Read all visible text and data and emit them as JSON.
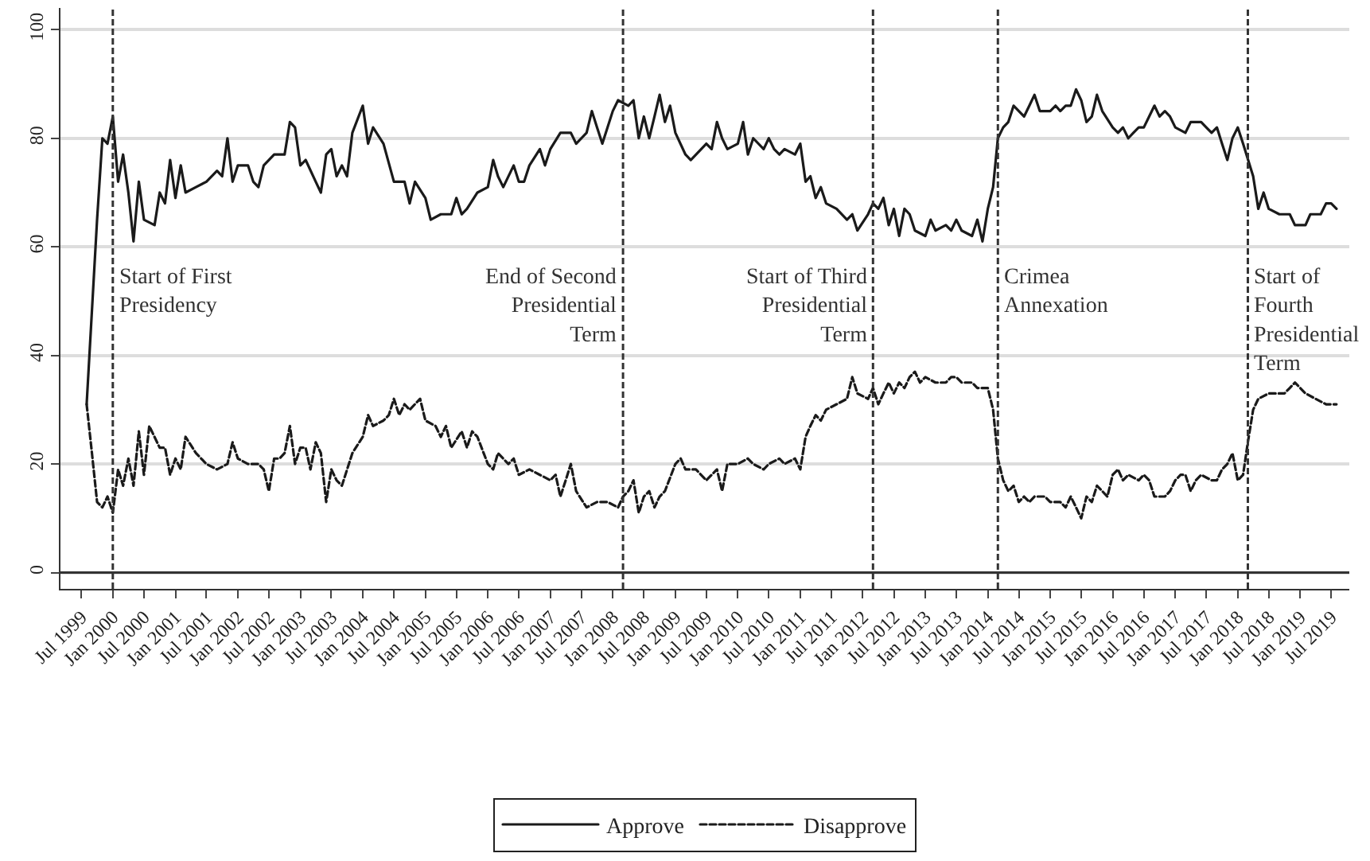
{
  "chart_data": {
    "type": "line",
    "xlim": [
      "1999-03-01",
      "2019-10-15"
    ],
    "ylim": [
      -3,
      104
    ],
    "yticks": [
      0,
      20,
      40,
      60,
      80,
      100
    ],
    "xticks": [
      {
        "value": "1999-07",
        "label": "Jul 1999"
      },
      {
        "value": "2000-01",
        "label": "Jan 2000"
      },
      {
        "value": "2000-07",
        "label": "Jul 2000"
      },
      {
        "value": "2001-01",
        "label": "Jan 2001"
      },
      {
        "value": "2001-07",
        "label": "Jul 2001"
      },
      {
        "value": "2002-01",
        "label": "Jan 2002"
      },
      {
        "value": "2002-07",
        "label": "Jul 2002"
      },
      {
        "value": "2003-01",
        "label": "Jan 2003"
      },
      {
        "value": "2003-07",
        "label": "Jul 2003"
      },
      {
        "value": "2004-01",
        "label": "Jan 2004"
      },
      {
        "value": "2004-07",
        "label": "Jul 2004"
      },
      {
        "value": "2005-01",
        "label": "Jan 2005"
      },
      {
        "value": "2005-07",
        "label": "Jul 2005"
      },
      {
        "value": "2006-01",
        "label": "Jan 2006"
      },
      {
        "value": "2006-07",
        "label": "Jul 2006"
      },
      {
        "value": "2007-01",
        "label": "Jan 2007"
      },
      {
        "value": "2007-07",
        "label": "Jul 2007"
      },
      {
        "value": "2008-01",
        "label": "Jan 2008"
      },
      {
        "value": "2008-07",
        "label": "Jul 2008"
      },
      {
        "value": "2009-01",
        "label": "Jan 2009"
      },
      {
        "value": "2009-07",
        "label": "Jul 2009"
      },
      {
        "value": "2010-01",
        "label": "Jan 2010"
      },
      {
        "value": "2010-07",
        "label": "Jul 2010"
      },
      {
        "value": "2011-01",
        "label": "Jan 2011"
      },
      {
        "value": "2011-07",
        "label": "Jul 2011"
      },
      {
        "value": "2012-01",
        "label": "Jan 2012"
      },
      {
        "value": "2012-07",
        "label": "Jul 2012"
      },
      {
        "value": "2013-01",
        "label": "Jan 2013"
      },
      {
        "value": "2013-07",
        "label": "Jul 2013"
      },
      {
        "value": "2014-01",
        "label": "Jan 2014"
      },
      {
        "value": "2014-07",
        "label": "Jul 2014"
      },
      {
        "value": "2015-01",
        "label": "Jan 2015"
      },
      {
        "value": "2015-07",
        "label": "Jul 2015"
      },
      {
        "value": "2016-01",
        "label": "Jan 2016"
      },
      {
        "value": "2016-07",
        "label": "Jul 2016"
      },
      {
        "value": "2017-01",
        "label": "Jan 2017"
      },
      {
        "value": "2017-07",
        "label": "Jul 2017"
      },
      {
        "value": "2018-01",
        "label": "Jan 2018"
      },
      {
        "value": "2018-07",
        "label": "Jul 2018"
      },
      {
        "value": "2019-01",
        "label": "Jan 2019"
      },
      {
        "value": "2019-07",
        "label": "Jul 2019"
      }
    ],
    "grid": "y",
    "legend": "bottom",
    "marker": "none",
    "ref_lines": [
      {
        "axis": "y",
        "value": 0,
        "label": null,
        "color": "#333333",
        "line_style": "solid"
      },
      {
        "axis": "x",
        "value": "2000-01",
        "label": "Start of First\nPresidency",
        "color": "#333333",
        "line_style": "dashed"
      },
      {
        "axis": "x",
        "value": "2008-03",
        "label": "End of Second\nPresidential\nTerm",
        "color": "#333333",
        "line_style": "dashed"
      },
      {
        "axis": "x",
        "value": "2012-03",
        "label": "Start of Third\nPresidential\nTerm",
        "color": "#333333",
        "line_style": "dashed"
      },
      {
        "axis": "x",
        "value": "2014-03",
        "label": "Crimea\nAnnexation",
        "color": "#333333",
        "line_style": "dashed"
      },
      {
        "axis": "x",
        "value": "2018-03",
        "label": "Start of\nFourth\nPresidential\nTerm",
        "color": "#333333",
        "line_style": "dashed"
      }
    ],
    "series": [
      {
        "name": "Approve",
        "color": "#1a1a1a",
        "line_style": "solid",
        "x": [
          "1999-08",
          "1999-10",
          "1999-11",
          "1999-12",
          "2000-01",
          "2000-02",
          "2000-03",
          "2000-04",
          "2000-05",
          "2000-06",
          "2000-07",
          "2000-09",
          "2000-10",
          "2000-11",
          "2000-12",
          "2001-01",
          "2001-02",
          "2001-03",
          "2001-05",
          "2001-07",
          "2001-09",
          "2001-10",
          "2001-11",
          "2001-12",
          "2002-01",
          "2002-03",
          "2002-04",
          "2002-05",
          "2002-06",
          "2002-08",
          "2002-10",
          "2002-11",
          "2002-12",
          "2003-01",
          "2003-02",
          "2003-04",
          "2003-05",
          "2003-06",
          "2003-07",
          "2003-08",
          "2003-09",
          "2003-10",
          "2003-11",
          "2004-01",
          "2004-02",
          "2004-03",
          "2004-05",
          "2004-07",
          "2004-09",
          "2004-10",
          "2004-11",
          "2005-01",
          "2005-02",
          "2005-04",
          "2005-06",
          "2005-07",
          "2005-08",
          "2005-09",
          "2005-11",
          "2006-01",
          "2006-02",
          "2006-03",
          "2006-04",
          "2006-06",
          "2006-07",
          "2006-08",
          "2006-09",
          "2006-11",
          "2006-12",
          "2007-01",
          "2007-03",
          "2007-05",
          "2007-06",
          "2007-08",
          "2007-09",
          "2007-10",
          "2007-11",
          "2008-01",
          "2008-02",
          "2008-04",
          "2008-05",
          "2008-06",
          "2008-07",
          "2008-08",
          "2008-09",
          "2008-10",
          "2008-11",
          "2008-12",
          "2009-01",
          "2009-03",
          "2009-04",
          "2009-06",
          "2009-07",
          "2009-08",
          "2009-09",
          "2009-10",
          "2009-11",
          "2010-01",
          "2010-02",
          "2010-03",
          "2010-04",
          "2010-06",
          "2010-07",
          "2010-08",
          "2010-09",
          "2010-10",
          "2010-12",
          "2011-01",
          "2011-02",
          "2011-03",
          "2011-04",
          "2011-05",
          "2011-06",
          "2011-08",
          "2011-10",
          "2011-11",
          "2011-12",
          "2012-02",
          "2012-03",
          "2012-04",
          "2012-05",
          "2012-06",
          "2012-07",
          "2012-08",
          "2012-09",
          "2012-10",
          "2012-11",
          "2013-01",
          "2013-02",
          "2013-03",
          "2013-05",
          "2013-06",
          "2013-07",
          "2013-08",
          "2013-10",
          "2013-11",
          "2013-12",
          "2014-01",
          "2014-02",
          "2014-03",
          "2014-04",
          "2014-05",
          "2014-06",
          "2014-08",
          "2014-09",
          "2014-10",
          "2014-11",
          "2015-01",
          "2015-02",
          "2015-03",
          "2015-04",
          "2015-05",
          "2015-06",
          "2015-07",
          "2015-08",
          "2015-09",
          "2015-10",
          "2015-11",
          "2016-01",
          "2016-02",
          "2016-03",
          "2016-04",
          "2016-05",
          "2016-06",
          "2016-07",
          "2016-08",
          "2016-09",
          "2016-10",
          "2016-11",
          "2016-12",
          "2017-01",
          "2017-03",
          "2017-04",
          "2017-06",
          "2017-07",
          "2017-08",
          "2017-09",
          "2017-10",
          "2017-11",
          "2017-12",
          "2018-01",
          "2018-02",
          "2018-04",
          "2018-05",
          "2018-06",
          "2018-07",
          "2018-09",
          "2018-11",
          "2018-12",
          "2019-02",
          "2019-03",
          "2019-05",
          "2019-06",
          "2019-07",
          "2019-08"
        ],
        "values": [
          31,
          65,
          80,
          79,
          84,
          72,
          77,
          70,
          61,
          72,
          65,
          64,
          70,
          68,
          76,
          69,
          75,
          70,
          71,
          72,
          74,
          73,
          80,
          72,
          75,
          75,
          72,
          71,
          75,
          77,
          77,
          83,
          82,
          75,
          76,
          72,
          70,
          77,
          78,
          73,
          75,
          73,
          81,
          86,
          79,
          82,
          79,
          72,
          72,
          68,
          72,
          69,
          65,
          66,
          66,
          69,
          66,
          67,
          70,
          71,
          76,
          73,
          71,
          75,
          72,
          72,
          75,
          78,
          75,
          78,
          81,
          81,
          79,
          81,
          85,
          82,
          79,
          85,
          87,
          86,
          87,
          80,
          84,
          80,
          84,
          88,
          83,
          86,
          81,
          77,
          76,
          78,
          79,
          78,
          83,
          80,
          78,
          79,
          83,
          77,
          80,
          78,
          80,
          78,
          77,
          78,
          77,
          79,
          72,
          73,
          69,
          71,
          68,
          67,
          65,
          66,
          63,
          66,
          68,
          67,
          69,
          64,
          67,
          62,
          67,
          66,
          63,
          62,
          65,
          63,
          64,
          63,
          65,
          63,
          62,
          65,
          61,
          67,
          71,
          80,
          82,
          83,
          86,
          84,
          86,
          88,
          85,
          85,
          86,
          85,
          86,
          86,
          89,
          87,
          83,
          84,
          88,
          85,
          82,
          81,
          82,
          80,
          81,
          82,
          82,
          84,
          86,
          84,
          85,
          84,
          82,
          81,
          83,
          83,
          82,
          81,
          82,
          79,
          76,
          80,
          82,
          79,
          73,
          67,
          70,
          67,
          66,
          66,
          64,
          64,
          66,
          66,
          68,
          68,
          67
        ]
      },
      {
        "name": "Disapprove",
        "color": "#1a1a1a",
        "line_style": "dashed",
        "x": [
          "1999-08",
          "1999-09",
          "1999-10",
          "1999-11",
          "1999-12",
          "2000-01",
          "2000-02",
          "2000-03",
          "2000-04",
          "2000-05",
          "2000-06",
          "2000-07",
          "2000-08",
          "2000-10",
          "2000-11",
          "2000-12",
          "2001-01",
          "2001-02",
          "2001-03",
          "2001-05",
          "2001-07",
          "2001-09",
          "2001-11",
          "2001-12",
          "2002-01",
          "2002-03",
          "2002-05",
          "2002-06",
          "2002-07",
          "2002-08",
          "2002-09",
          "2002-10",
          "2002-11",
          "2002-12",
          "2003-01",
          "2003-02",
          "2003-03",
          "2003-04",
          "2003-05",
          "2003-06",
          "2003-07",
          "2003-08",
          "2003-09",
          "2003-11",
          "2004-01",
          "2004-02",
          "2004-03",
          "2004-05",
          "2004-06",
          "2004-07",
          "2004-08",
          "2004-09",
          "2004-10",
          "2004-12",
          "2005-01",
          "2005-03",
          "2005-04",
          "2005-05",
          "2005-06",
          "2005-08",
          "2005-09",
          "2005-10",
          "2005-11",
          "2006-01",
          "2006-02",
          "2006-03",
          "2006-05",
          "2006-06",
          "2006-07",
          "2006-09",
          "2006-11",
          "2007-01",
          "2007-02",
          "2007-03",
          "2007-04",
          "2007-05",
          "2007-06",
          "2007-08",
          "2007-10",
          "2007-12",
          "2008-02",
          "2008-03",
          "2008-04",
          "2008-05",
          "2008-06",
          "2008-07",
          "2008-08",
          "2008-09",
          "2008-10",
          "2008-11",
          "2009-01",
          "2009-02",
          "2009-03",
          "2009-05",
          "2009-07",
          "2009-08",
          "2009-09",
          "2009-10",
          "2009-11",
          "2010-01",
          "2010-03",
          "2010-04",
          "2010-06",
          "2010-07",
          "2010-09",
          "2010-10",
          "2010-12",
          "2011-01",
          "2011-02",
          "2011-03",
          "2011-04",
          "2011-05",
          "2011-06",
          "2011-08",
          "2011-10",
          "2011-11",
          "2011-12",
          "2012-02",
          "2012-03",
          "2012-04",
          "2012-05",
          "2012-06",
          "2012-07",
          "2012-08",
          "2012-09",
          "2012-10",
          "2012-11",
          "2012-12",
          "2013-01",
          "2013-03",
          "2013-05",
          "2013-06",
          "2013-07",
          "2013-08",
          "2013-10",
          "2013-11",
          "2014-01",
          "2014-02",
          "2014-03",
          "2014-04",
          "2014-05",
          "2014-06",
          "2014-07",
          "2014-08",
          "2014-09",
          "2014-10",
          "2014-12",
          "2015-01",
          "2015-03",
          "2015-04",
          "2015-05",
          "2015-06",
          "2015-07",
          "2015-08",
          "2015-09",
          "2015-10",
          "2015-11",
          "2015-12",
          "2016-01",
          "2016-02",
          "2016-03",
          "2016-04",
          "2016-06",
          "2016-07",
          "2016-08",
          "2016-09",
          "2016-11",
          "2016-12",
          "2017-01",
          "2017-02",
          "2017-03",
          "2017-04",
          "2017-05",
          "2017-06",
          "2017-08",
          "2017-09",
          "2017-10",
          "2017-11",
          "2017-12",
          "2018-01",
          "2018-02",
          "2018-03",
          "2018-04",
          "2018-05",
          "2018-07",
          "2018-09",
          "2018-10",
          "2018-11",
          "2018-12",
          "2019-02",
          "2019-04",
          "2019-06",
          "2019-08"
        ],
        "values": [
          31,
          22,
          13,
          12,
          14,
          11,
          19,
          16,
          21,
          16,
          26,
          18,
          27,
          23,
          23,
          18,
          21,
          19,
          25,
          22,
          20,
          19,
          20,
          24,
          21,
          20,
          20,
          19,
          15,
          21,
          21,
          22,
          27,
          20,
          23,
          23,
          19,
          24,
          22,
          13,
          19,
          17,
          16,
          22,
          25,
          29,
          27,
          28,
          29,
          32,
          29,
          31,
          30,
          32,
          28,
          27,
          25,
          27,
          23,
          26,
          23,
          26,
          25,
          20,
          19,
          22,
          20,
          21,
          18,
          19,
          18,
          17,
          18,
          14,
          17,
          20,
          15,
          12,
          13,
          13,
          12,
          14,
          15,
          17,
          11,
          14,
          15,
          12,
          14,
          15,
          20,
          21,
          19,
          19,
          17,
          18,
          19,
          15,
          20,
          20,
          21,
          20,
          19,
          20,
          21,
          20,
          21,
          19,
          25,
          27,
          29,
          28,
          30,
          31,
          32,
          36,
          33,
          32,
          34,
          31,
          33,
          35,
          33,
          35,
          34,
          36,
          37,
          35,
          36,
          35,
          35,
          36,
          36,
          35,
          35,
          34,
          34,
          30,
          21,
          17,
          15,
          16,
          13,
          14,
          13,
          14,
          14,
          13,
          13,
          12,
          14,
          12,
          10,
          14,
          13,
          16,
          15,
          14,
          18,
          19,
          17,
          18,
          17,
          18,
          17,
          14,
          14,
          15,
          17,
          18,
          18,
          15,
          17,
          18,
          17,
          17,
          19,
          20,
          22,
          17,
          18,
          24,
          30,
          32,
          33,
          33,
          33,
          34,
          35,
          33,
          32,
          31,
          31
        ]
      }
    ]
  }
}
